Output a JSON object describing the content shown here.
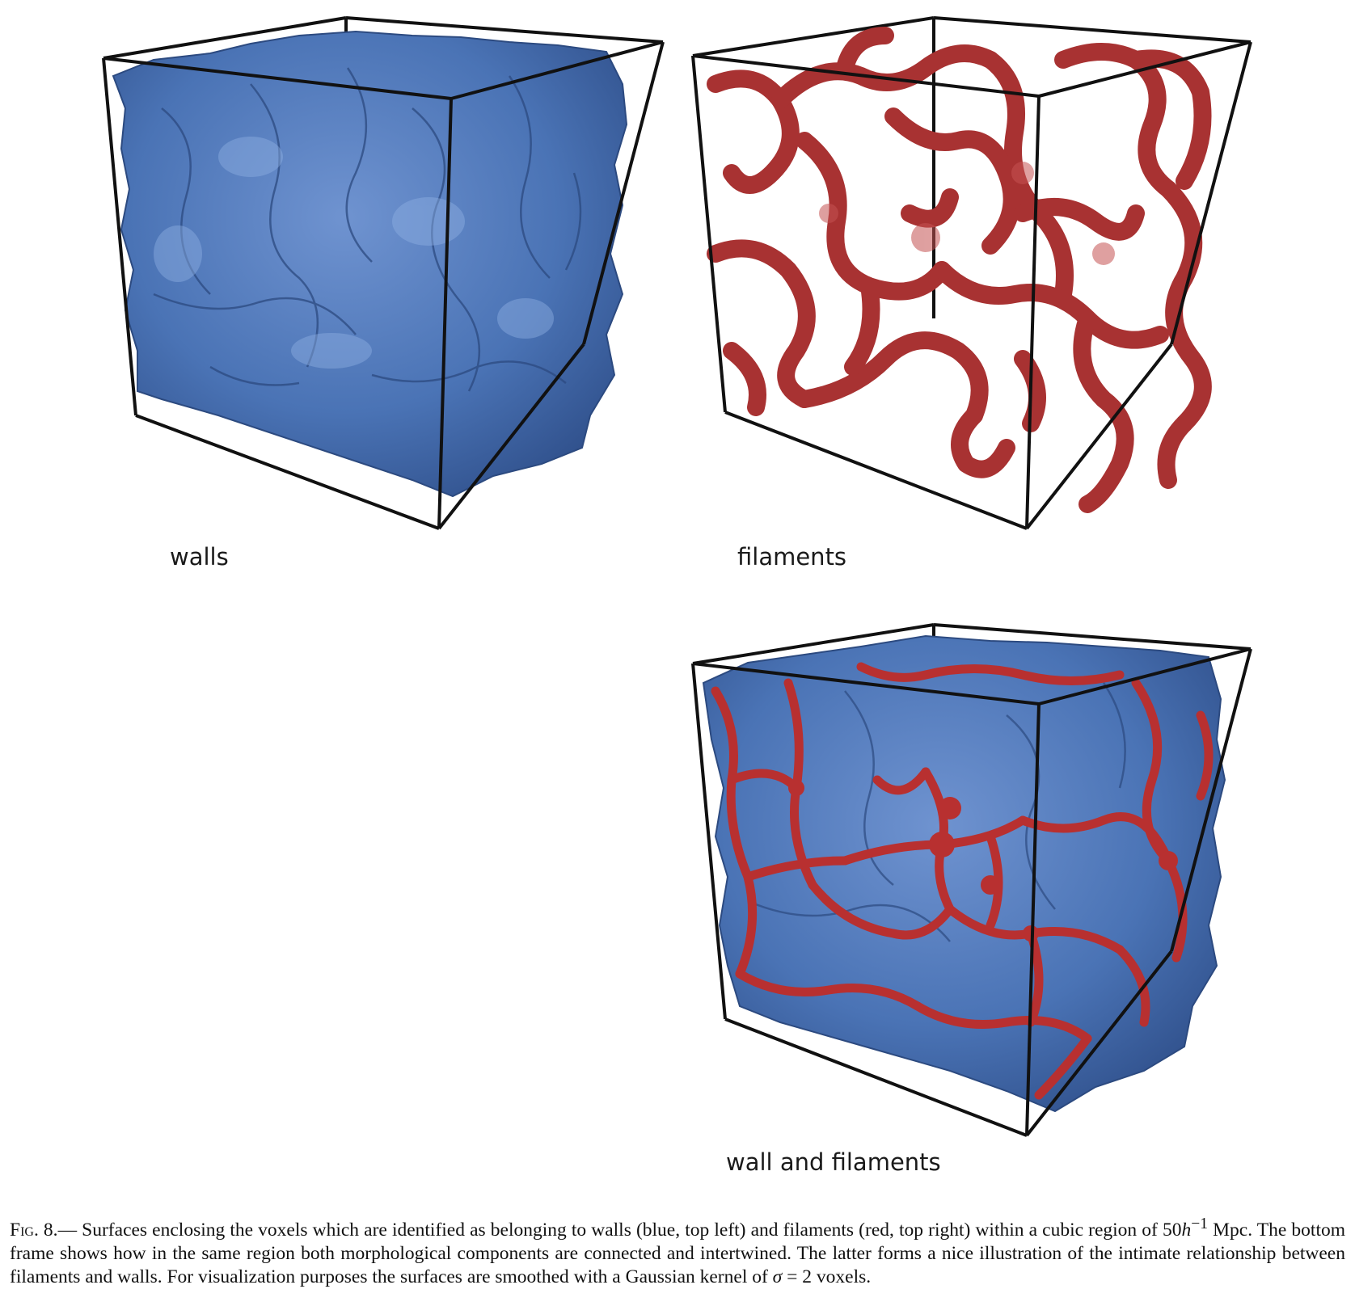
{
  "panels": [
    {
      "id": "walls",
      "label": "walls",
      "surface_color": "#4a73b5"
    },
    {
      "id": "filaments",
      "label": "filaments",
      "surface_color": "#a83232"
    },
    {
      "id": "combined",
      "label": "wall and filaments",
      "surface_color": "#4a73b5",
      "overlay_color": "#b83030"
    }
  ],
  "caption": {
    "fig_label": "Fig. 8.",
    "dash": "—",
    "text_part1": " Surfaces enclosing the voxels which are identified as belonging to walls (blue, top left) and filaments (red, top right) within a cubic region of 50",
    "h_symbol": "h",
    "exponent": "−1",
    "text_part2": " Mpc. The bottom frame shows how in the same region both morphological components are connected and intertwined. The latter forms a nice illustration of the intimate relationship between filaments and walls. For visualization purposes the surfaces are smoothed with a Gaussian kernel of ",
    "sigma_symbol": "σ",
    "text_part3": " = 2 voxels."
  }
}
